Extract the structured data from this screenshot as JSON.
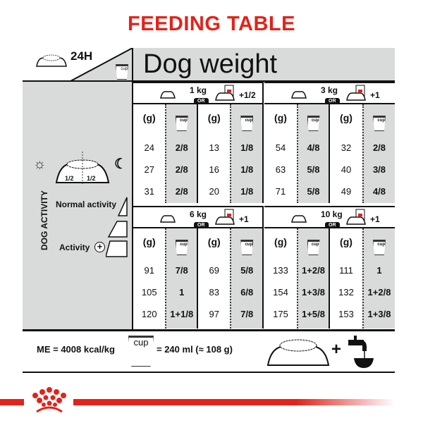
{
  "title": "FEEDING TABLE",
  "header": {
    "period": "24H",
    "dog_weight": "Dog weight",
    "cup_label": "cup"
  },
  "left_panel": {
    "vertical_label": "DOG ACTIVITY",
    "split_left": "1/2",
    "split_right": "1/2",
    "normal_activity": "Normal activity",
    "activity": "Activity"
  },
  "column_headers": {
    "grams": "(g)",
    "cup": "cup"
  },
  "blocks": [
    {
      "weight": "1 kg",
      "or": "OR",
      "extra": "+1/2",
      "rows": [
        [
          "24",
          "2/8",
          "13",
          "1/8"
        ],
        [
          "27",
          "2/8",
          "16",
          "1/8"
        ],
        [
          "31",
          "2/8",
          "20",
          "1/8"
        ]
      ]
    },
    {
      "weight": "3 kg",
      "or": "OR",
      "extra": "+1",
      "rows": [
        [
          "54",
          "4/8",
          "32",
          "2/8"
        ],
        [
          "63",
          "5/8",
          "40",
          "3/8"
        ],
        [
          "71",
          "5/8",
          "49",
          "4/8"
        ]
      ]
    },
    {
      "weight": "6 kg",
      "or": "OR",
      "extra": "+1",
      "rows": [
        [
          "91",
          "7/8",
          "69",
          "5/8"
        ],
        [
          "105",
          "1",
          "83",
          "6/8"
        ],
        [
          "120",
          "1+1/8",
          "97",
          "7/8"
        ]
      ]
    },
    {
      "weight": "10 kg",
      "or": "OR",
      "extra": "+1",
      "rows": [
        [
          "133",
          "1+2/8",
          "111",
          "1"
        ],
        [
          "154",
          "1+3/8",
          "132",
          "1+2/8"
        ],
        [
          "175",
          "1+5/8",
          "153",
          "1+3/8"
        ]
      ]
    }
  ],
  "footer": {
    "energy": "ME = 4008 kcal/kg",
    "cup_label": "cup",
    "cup_equivalence": "= 240 ml (≈ 108 g)"
  },
  "colors": {
    "brand_red": "#e2231a",
    "panel_gray": "#d9dada"
  }
}
